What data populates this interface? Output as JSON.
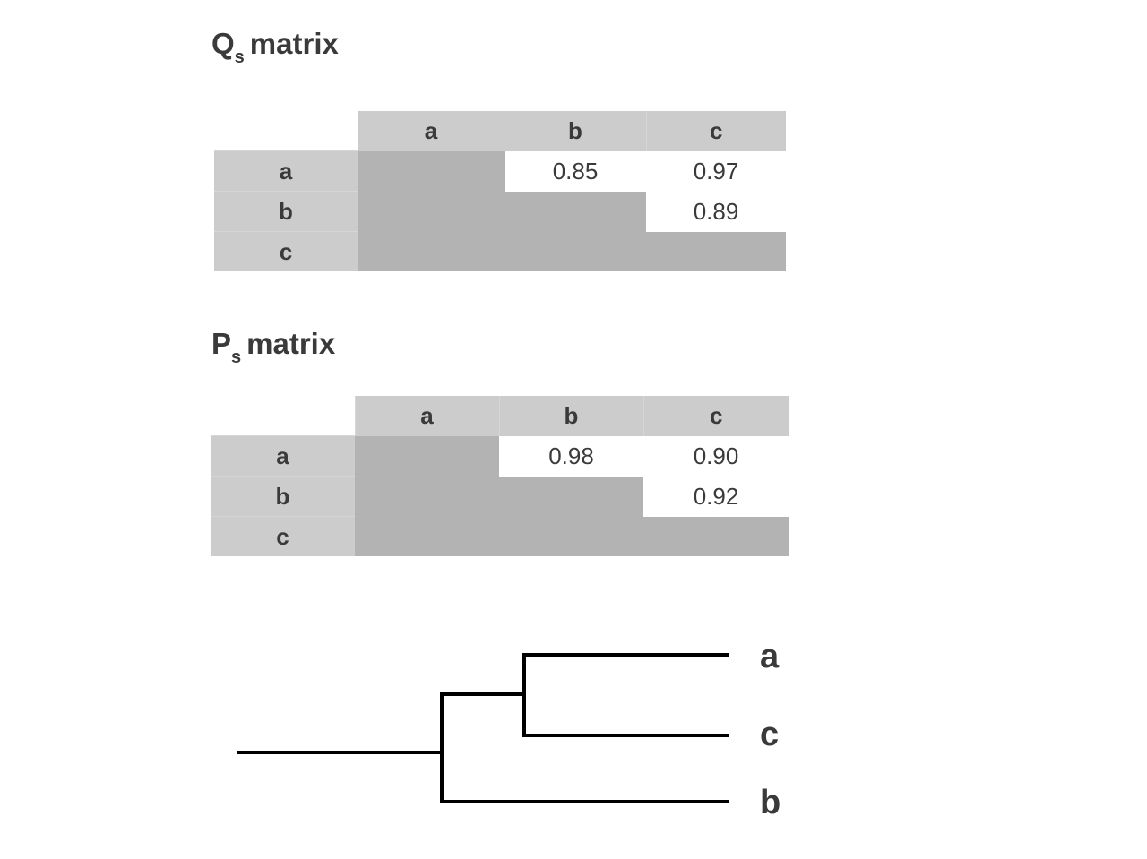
{
  "qs_matrix": {
    "title_letter": "Q",
    "title_sub": "s",
    "title_rest": "matrix",
    "columns": [
      "a",
      "b",
      "c"
    ],
    "rows": [
      "a",
      "b",
      "c"
    ],
    "values": {
      "a_b": "0.85",
      "a_c": "0.97",
      "b_c": "0.89"
    }
  },
  "ps_matrix": {
    "title_letter": "P",
    "title_sub": "s",
    "title_rest": "matrix",
    "columns": [
      "a",
      "b",
      "c"
    ],
    "rows": [
      "a",
      "b",
      "c"
    ],
    "values": {
      "a_b": "0.98",
      "a_c": "0.90",
      "b_c": "0.92"
    }
  },
  "dendrogram": {
    "leaves": [
      "a",
      "c",
      "b"
    ],
    "line_color": "#000000"
  },
  "colors": {
    "header_fill": "#cccccc",
    "lower_triangle_fill": "#b3b3b3",
    "text": "#3a3a3a"
  }
}
